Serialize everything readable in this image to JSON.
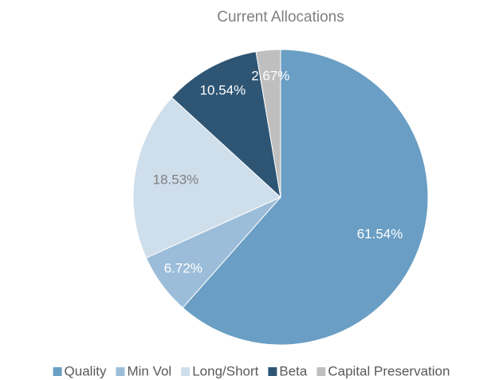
{
  "chart_data": {
    "type": "pie",
    "title": "Current Allocations",
    "categories": [
      "Quality",
      "Min Vol",
      "Long/Short",
      "Beta",
      "Capital Preservation"
    ],
    "values": [
      61.54,
      6.72,
      18.53,
      10.54,
      2.67
    ],
    "value_labels": [
      "61.54%",
      "6.72%",
      "18.53%",
      "10.54%",
      "2.67%"
    ],
    "colors": [
      "#6a9ec4",
      "#9cbdd9",
      "#cfdeeb",
      "#2e5574",
      "#bfbfbf"
    ],
    "legend": "bottom"
  }
}
